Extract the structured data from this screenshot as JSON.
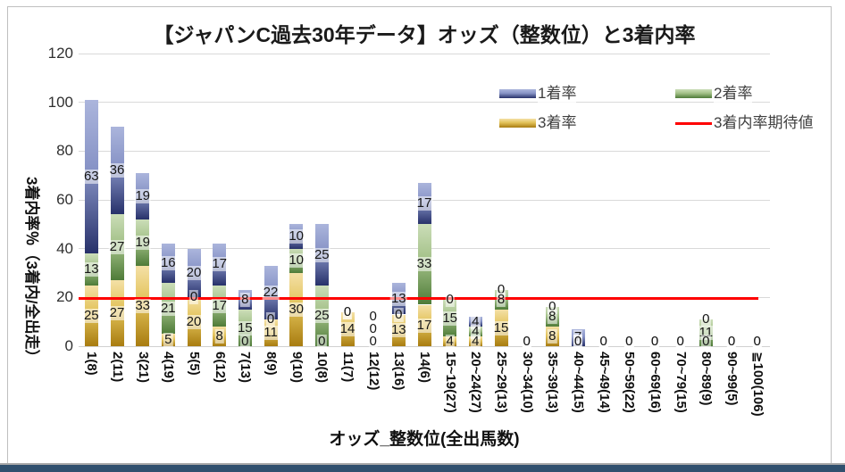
{
  "chart_data": {
    "type": "bar",
    "subtype": "stacked-column-with-line",
    "title": "【ジャパンC過去30年データ】オッズ（整数位）と3着内率",
    "xlabel": "オッズ_整数位(全出馬数)",
    "ylabel": "3着内率％（3着内/全出走）",
    "y_ticks": [
      0,
      20,
      40,
      60,
      80,
      100,
      120
    ],
    "ylim": [
      0,
      120
    ],
    "grid": "horizontal",
    "legend_position": "top-right-two-rows",
    "categories": [
      "1(8)",
      "2(11)",
      "3(21)",
      "4(19)",
      "5(5)",
      "6(12)",
      "7(13)",
      "8(9)",
      "9(10)",
      "10(8)",
      "11(7)",
      "12(12)",
      "13(16)",
      "14(6)",
      "15~19(27)",
      "20~24(27)",
      "25~29(13)",
      "30~34(10)",
      "35~39(13)",
      "40~44(15)",
      "45~49(14)",
      "50~59(22)",
      "60~69(16)",
      "70~79(15)",
      "80~89(9)",
      "90~99(5)",
      "≧100(106)"
    ],
    "series": [
      {
        "key": "win",
        "name": "1着率",
        "color_top": "#abb5dc",
        "color_mid": "#8793c6",
        "color_bottom": "#27316a",
        "values": [
          63,
          36,
          19,
          16,
          20,
          17,
          8,
          22,
          10,
          25,
          0,
          0,
          13,
          17,
          0,
          4,
          0,
          0,
          0,
          7,
          0,
          0,
          0,
          0,
          0,
          0,
          0
        ]
      },
      {
        "key": "second",
        "name": "2着率",
        "color_top": "#cbddb8",
        "color_mid": "#a3c188",
        "color_bottom": "#4e7b38",
        "values": [
          13,
          27,
          19,
          21,
          0,
          17,
          15,
          0,
          10,
          25,
          0,
          0,
          0,
          33,
          15,
          4,
          8,
          0,
          8,
          0,
          0,
          0,
          0,
          0,
          11,
          0,
          0
        ]
      },
      {
        "key": "third",
        "name": "3着率",
        "color_top": "#f4e0a6",
        "color_mid": "#e2c258",
        "color_bottom": "#a87c10",
        "values": [
          25,
          27,
          33,
          5,
          20,
          8,
          0,
          11,
          30,
          0,
          14,
          0,
          13,
          17,
          4,
          4,
          15,
          0,
          8,
          0,
          0,
          0,
          0,
          0,
          0,
          0,
          0
        ]
      }
    ],
    "expected_line": {
      "name": "3着内率期待値",
      "value": 19.6,
      "color": "#fe0000"
    },
    "stacked_zero_label_categories": [
      "12(12)"
    ]
  }
}
